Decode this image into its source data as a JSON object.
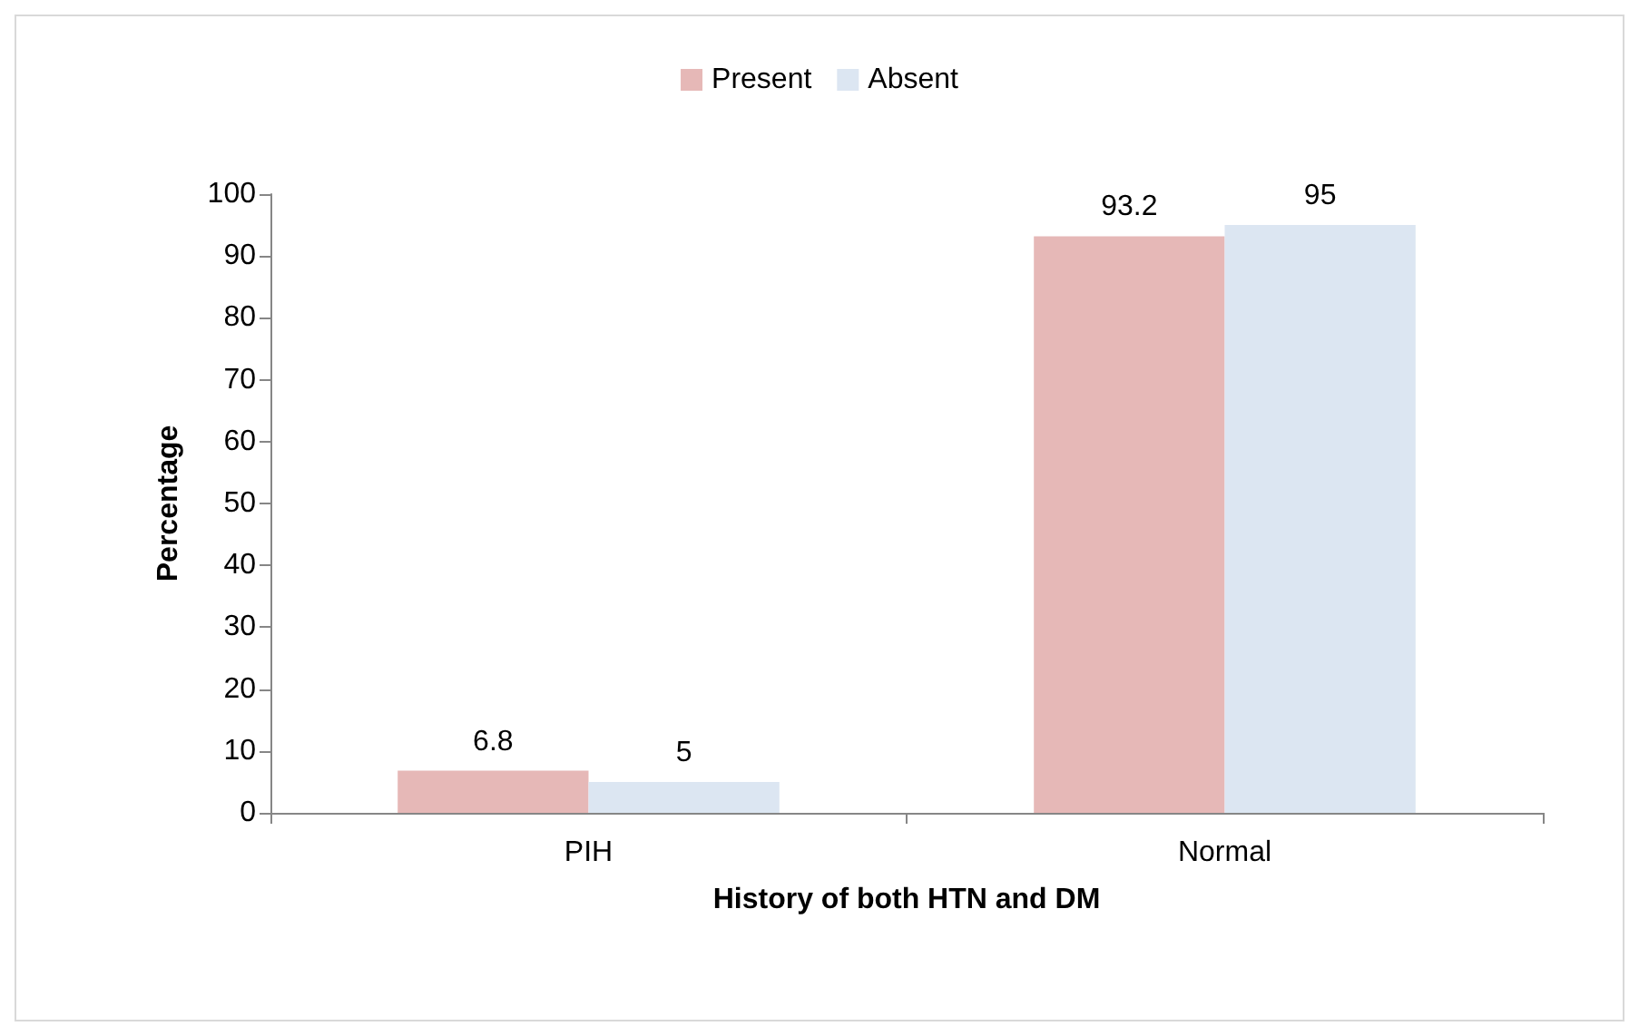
{
  "chart_data": {
    "type": "bar",
    "xlabel": "History of both HTN and DM",
    "ylabel": "Percentage",
    "categories": [
      "PIH",
      "Normal"
    ],
    "series": [
      {
        "name": "Present",
        "color": "#e6b8b7",
        "values": [
          6.8,
          93.2
        ]
      },
      {
        "name": "Absent",
        "color": "#dce6f2",
        "values": [
          5,
          95
        ]
      }
    ],
    "ylim": [
      0,
      100
    ],
    "yticks": [
      0,
      10,
      20,
      30,
      40,
      50,
      60,
      70,
      80,
      90,
      100
    ],
    "grid": false,
    "legend": "top",
    "data_labels": true
  }
}
